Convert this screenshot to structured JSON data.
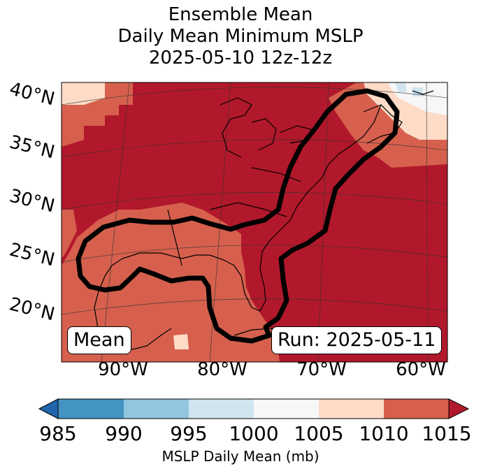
{
  "title": {
    "line1": "Ensemble Mean",
    "line2": "Daily Mean Minimum MSLP",
    "line3": "2025-05-10 12z-12z"
  },
  "map": {
    "lat_labels": [
      "40°N",
      "35°N",
      "30°N",
      "25°N",
      "20°N"
    ],
    "lon_labels": [
      "90°W",
      "80°W",
      "70°W",
      "60°W"
    ],
    "mean_box": "Mean",
    "run_box": "Run: 2025-05-11",
    "colors": {
      "lt1015": "#d6604d",
      "ge1015": "#b2182b",
      "1005_1010": "#fddbc7",
      "1000_1005": "#f7f7f7",
      "995_1000": "#d1e5f0"
    }
  },
  "colorbar": {
    "ticks": [
      "985",
      "990",
      "995",
      "1000",
      "1005",
      "1010",
      "1015"
    ],
    "label": "MSLP Daily Mean (mb)",
    "colors": [
      "#2166ac",
      "#4393c3",
      "#92c5de",
      "#d1e5f0",
      "#f7f7f7",
      "#fddbc7",
      "#d6604d",
      "#b2182b"
    ]
  }
}
